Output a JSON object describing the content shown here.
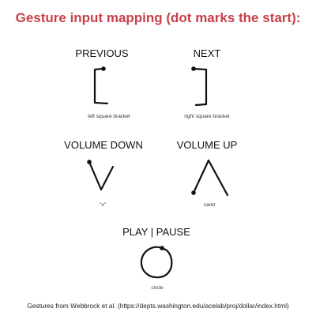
{
  "title": "Gesture input mapping (dot marks the start):",
  "gestures": [
    {
      "action": "PREVIOUS",
      "gesture": "left square bracket",
      "icon": "left-square-bracket-icon"
    },
    {
      "action": "NEXT",
      "gesture": "right square bracket",
      "icon": "right-square-bracket-icon"
    },
    {
      "action": "VOLUME DOWN",
      "gesture": "\"v\"",
      "icon": "v-gesture-icon"
    },
    {
      "action": "VOLUME UP",
      "gesture": "caret",
      "icon": "caret-gesture-icon"
    },
    {
      "action": "PLAY | PAUSE",
      "gesture": "circle",
      "icon": "circle-gesture-icon"
    }
  ],
  "footer": "Gestures from Webbrock et al. (https://depts.washington.edu/acelab/proj/dollar/index.html)"
}
